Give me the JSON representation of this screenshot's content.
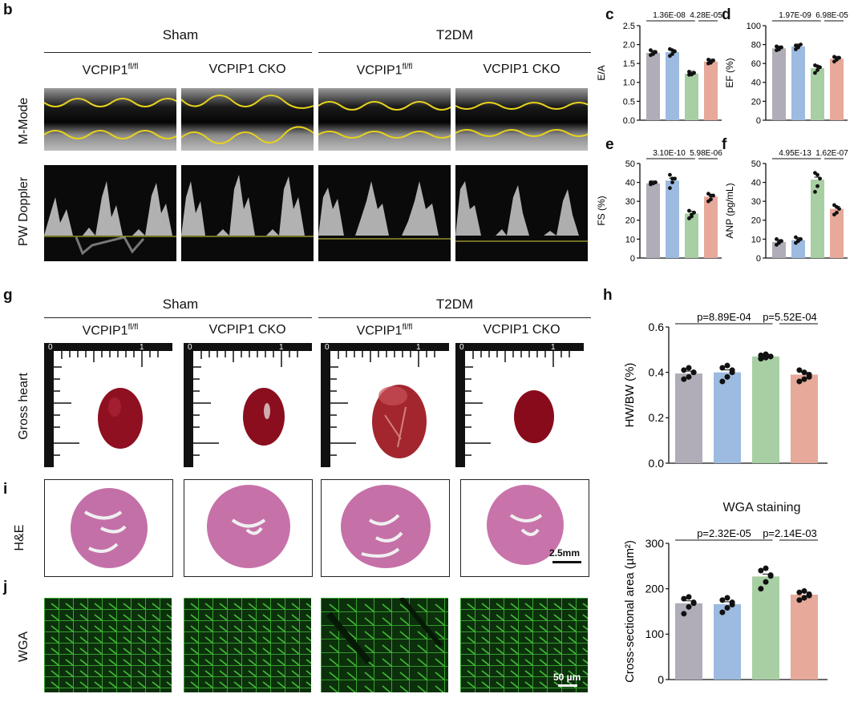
{
  "panel_labels": {
    "b": "b",
    "c": "c",
    "d": "d",
    "e": "e",
    "f": "f",
    "g": "g",
    "h": "h",
    "i": "i",
    "j": "j"
  },
  "groups": {
    "sham": "Sham",
    "t2dm": "T2DM"
  },
  "columns": {
    "flfl_base": "VCPIP1",
    "flfl_sup": "fl/fl",
    "cko": "VCPIP1 CKO"
  },
  "rows": {
    "mmode": "M-Mode",
    "pw": "PW Doppler",
    "gross": "Gross heart",
    "he": "H&E",
    "wga": "WGA"
  },
  "ruler": {
    "zero": "0",
    "one": "1"
  },
  "scalebars": {
    "he": "2.5mm",
    "wga": "50 µm"
  },
  "colors": {
    "sham_flfl": "#b0adb8",
    "sham_cko": "#9dbbe0",
    "t2dm_flfl": "#a7cfa3",
    "t2dm_cko": "#e6a99a"
  },
  "wga_title": "WGA staining",
  "chart_data": [
    {
      "id": "c",
      "type": "bar",
      "ylabel": "E/A",
      "ylim": [
        0,
        2.5
      ],
      "yticks": [
        "0.0",
        "0.5",
        "1.0",
        "1.5",
        "2.0",
        "2.5"
      ],
      "values": [
        1.78,
        1.8,
        1.23,
        1.55
      ],
      "pvalues": [
        "1.36E-08",
        "4.28E-05"
      ],
      "points": [
        [
          1.72,
          1.75,
          1.8,
          1.85,
          1.78
        ],
        [
          1.7,
          1.75,
          1.82,
          1.88,
          1.85
        ],
        [
          1.2,
          1.22,
          1.25,
          1.28,
          1.21
        ],
        [
          1.5,
          1.52,
          1.58,
          1.6,
          1.55
        ]
      ]
    },
    {
      "id": "d",
      "type": "bar",
      "ylabel": "EF (%)",
      "ylim": [
        0,
        100
      ],
      "yticks": [
        "0",
        "20",
        "40",
        "60",
        "80",
        "100"
      ],
      "values": [
        76,
        78,
        55,
        65
      ],
      "pvalues": [
        "1.97E-09",
        "6.98E-05"
      ],
      "points": [
        [
          74,
          76,
          77,
          78,
          75
        ],
        [
          75,
          77,
          80,
          79,
          78
        ],
        [
          50,
          53,
          56,
          58,
          57
        ],
        [
          62,
          64,
          66,
          67,
          65
        ]
      ]
    },
    {
      "id": "e",
      "type": "bar",
      "ylabel": "FS (%)",
      "ylim": [
        0,
        50
      ],
      "yticks": [
        "0",
        "10",
        "20",
        "30",
        "40",
        "50"
      ],
      "values": [
        39.5,
        41,
        23.5,
        32.5
      ],
      "pvalues": [
        "3.10E-10",
        "5.98E-06"
      ],
      "points": [
        [
          39,
          39.5,
          40,
          40,
          39.5
        ],
        [
          37,
          40,
          42,
          44,
          42
        ],
        [
          21,
          22,
          24,
          25,
          23
        ],
        [
          30,
          31,
          33,
          34,
          33
        ]
      ]
    },
    {
      "id": "f",
      "type": "bar",
      "ylabel": "ANP (pg/mL)",
      "ylim": [
        0,
        50
      ],
      "yticks": [
        "0",
        "10",
        "20",
        "30",
        "40",
        "50"
      ],
      "values": [
        8.5,
        9.5,
        41.5,
        26
      ],
      "pvalues": [
        "4.95E-13",
        "1.62E-07"
      ],
      "points": [
        [
          7,
          8,
          9,
          10,
          8.5
        ],
        [
          8,
          9,
          10,
          11,
          9.5
        ],
        [
          35,
          38,
          42,
          45,
          44
        ],
        [
          23,
          24,
          26,
          28,
          27
        ]
      ]
    },
    {
      "id": "h",
      "type": "bar",
      "ylabel": "HW/BW (%)",
      "ylim": [
        0,
        0.6
      ],
      "yticks": [
        "0.0",
        "0.2",
        "0.4",
        "0.6"
      ],
      "values": [
        0.395,
        0.4,
        0.47,
        0.39
      ],
      "pvalues": [
        "p=8.89E-04",
        "p=5.52E-04"
      ],
      "points": [
        [
          0.37,
          0.38,
          0.4,
          0.41,
          0.42,
          0.4
        ],
        [
          0.36,
          0.38,
          0.4,
          0.42,
          0.43,
          0.41
        ],
        [
          0.46,
          0.465,
          0.47,
          0.475,
          0.48,
          0.47
        ],
        [
          0.36,
          0.37,
          0.39,
          0.41,
          0.4,
          0.38
        ]
      ]
    },
    {
      "id": "wga",
      "type": "bar",
      "title": "WGA staining",
      "ylabel": "Cross-sectional area (µm²)",
      "ylim": [
        0,
        300
      ],
      "yticks": [
        "0",
        "100",
        "200",
        "300"
      ],
      "values": [
        168,
        166,
        227,
        187
      ],
      "pvalues": [
        "p=2.32E-05",
        "p=2.14E-03"
      ],
      "points": [
        [
          145,
          160,
          170,
          178,
          182,
          168
        ],
        [
          148,
          158,
          165,
          175,
          180,
          170
        ],
        [
          200,
          215,
          230,
          240,
          245,
          228
        ],
        [
          175,
          180,
          188,
          192,
          195,
          185
        ]
      ]
    }
  ]
}
